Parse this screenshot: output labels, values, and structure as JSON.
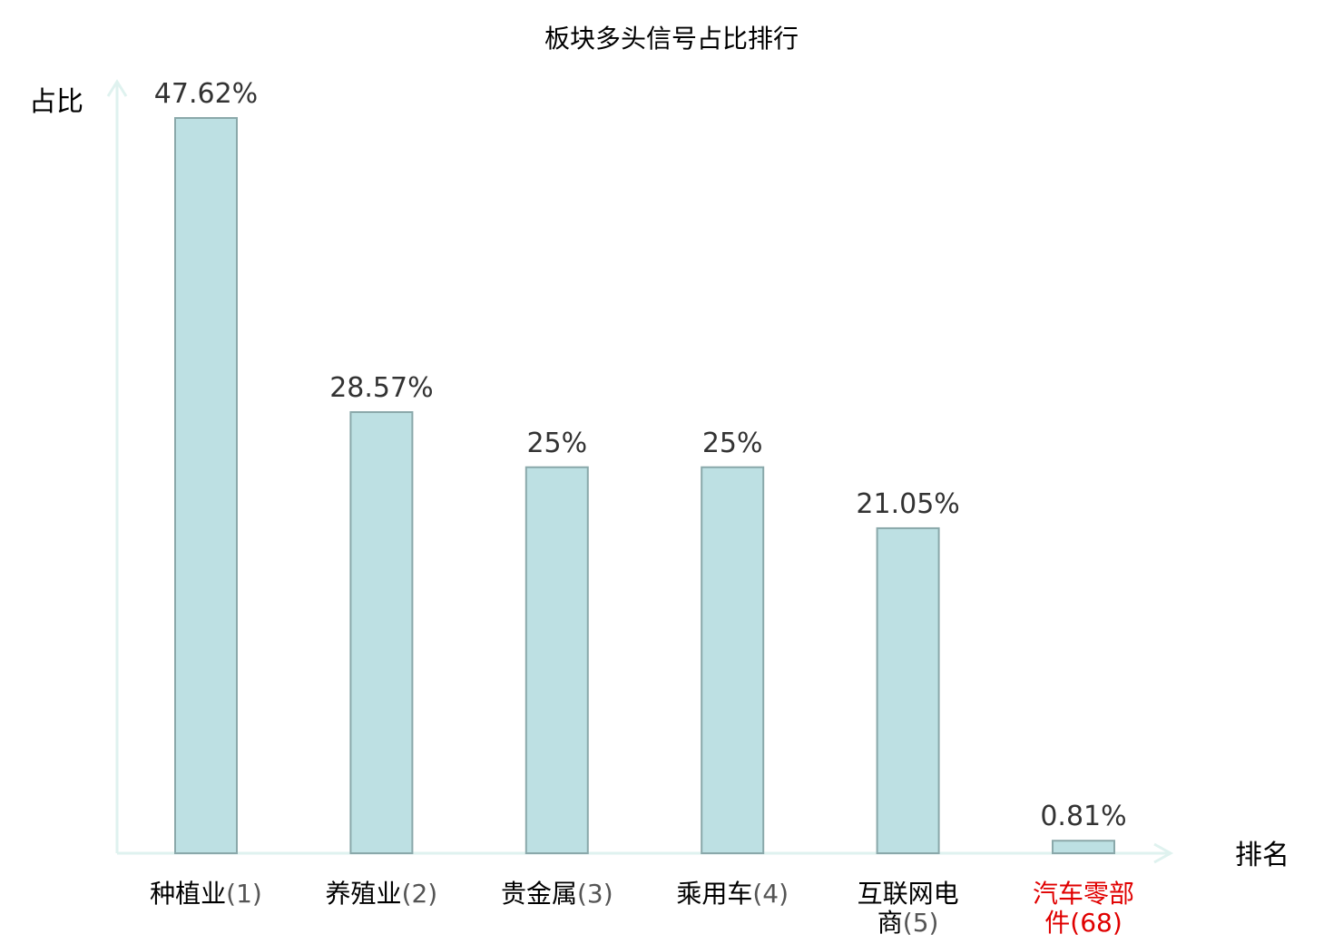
{
  "chart_data": {
    "type": "bar",
    "title": "板块多头信号占比排行",
    "ylabel": "占比",
    "xlabel": "排名",
    "ylim": [
      0,
      50
    ],
    "grid": false,
    "categories": [
      {
        "name_lines": [
          "种植业"
        ],
        "rank": "(1)",
        "highlight": false
      },
      {
        "name_lines": [
          "养殖业"
        ],
        "rank": "(2)",
        "highlight": false
      },
      {
        "name_lines": [
          "贵金属"
        ],
        "rank": "(3)",
        "highlight": false
      },
      {
        "name_lines": [
          "乘用车"
        ],
        "rank": "(4)",
        "highlight": false
      },
      {
        "name_lines": [
          "互联网电",
          "商"
        ],
        "rank": "(5)",
        "highlight": false
      },
      {
        "name_lines": [
          "汽车零部",
          "件"
        ],
        "rank": "(68)",
        "highlight": true
      }
    ],
    "values": [
      47.62,
      28.57,
      25,
      25,
      21.05,
      0.81
    ],
    "value_labels": [
      "47.62%",
      "28.57%",
      "25%",
      "25%",
      "21.05%",
      "0.81%"
    ]
  },
  "colors": {
    "bar_fill": "#bde0e3",
    "bar_stroke": "#8aa8aa",
    "axis": "#dff2ef",
    "highlight_text": "#e00000",
    "normal_text": "#000000"
  }
}
